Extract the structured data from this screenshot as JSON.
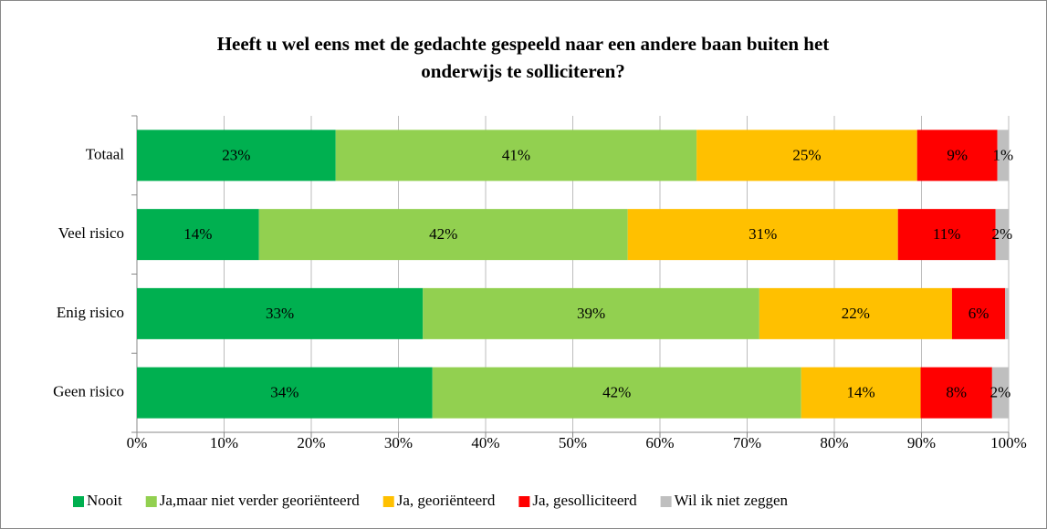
{
  "chart_data": {
    "type": "stacked_barh",
    "title": [
      "Heeft u wel eens met de gedachte gespeeld naar een andere baan buiten het",
      "onderwijs te solliciteren?"
    ],
    "categories": [
      "Totaal",
      "Veel risico",
      "Enig risico",
      "Geen risico"
    ],
    "series": [
      {
        "name": "Nooit",
        "color": "#00b050",
        "values": [
          22.8,
          14.0,
          32.8,
          33.9
        ],
        "value_labels": [
          "23%",
          "14%",
          "33%",
          "34%"
        ]
      },
      {
        "name": "Ja,maar niet verder georiënteerd",
        "color": "#92d050",
        "values": [
          41.4,
          42.3,
          38.6,
          42.3
        ],
        "value_labels": [
          "41%",
          "42%",
          "39%",
          "42%"
        ]
      },
      {
        "name": "Ja, georiënteerd",
        "color": "#ffc000",
        "values": [
          25.3,
          31.0,
          22.1,
          13.7
        ],
        "value_labels": [
          "25%",
          "31%",
          "22%",
          "14%"
        ]
      },
      {
        "name": "Ja, gesolliciteerd",
        "color": "#ff0000",
        "values": [
          9.2,
          11.2,
          6.1,
          8.2
        ],
        "value_labels": [
          "9%",
          "11%",
          "6%",
          "8%"
        ]
      },
      {
        "name": "Wil ik niet zeggen",
        "color": "#bfbfbf",
        "values": [
          1.3,
          1.5,
          0.4,
          1.9
        ],
        "value_labels": [
          "1%",
          "2%",
          null,
          "2%"
        ]
      }
    ],
    "xlim": [
      0,
      100
    ],
    "xticks": [
      {
        "value": 0,
        "label": "0%"
      },
      {
        "value": 10,
        "label": "10%"
      },
      {
        "value": 20,
        "label": "20%"
      },
      {
        "value": 30,
        "label": "30%"
      },
      {
        "value": 40,
        "label": "40%"
      },
      {
        "value": 50,
        "label": "50%"
      },
      {
        "value": 60,
        "label": "60%"
      },
      {
        "value": 70,
        "label": "70%"
      },
      {
        "value": 80,
        "label": "80%"
      },
      {
        "value": 90,
        "label": "90%"
      },
      {
        "value": 100,
        "label": "100%"
      }
    ],
    "grid": true,
    "legend": "bottom"
  }
}
